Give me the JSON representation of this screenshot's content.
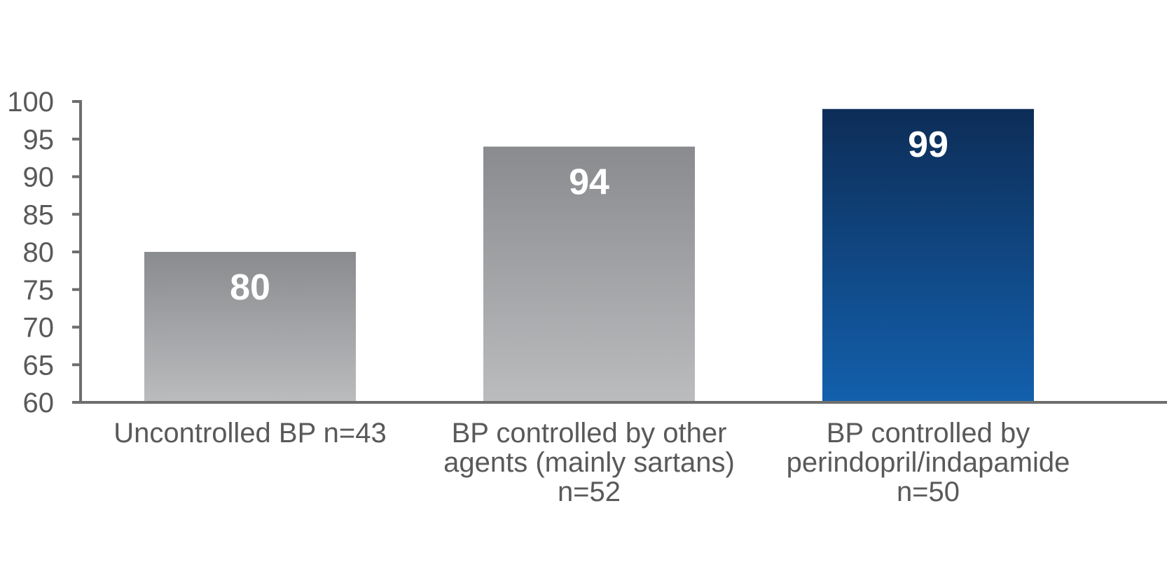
{
  "chart_data": {
    "type": "bar",
    "title": "",
    "xlabel": "",
    "ylabel": "",
    "ylim": [
      60,
      100
    ],
    "yticks": [
      60,
      65,
      70,
      75,
      80,
      85,
      90,
      95,
      100
    ],
    "grid": false,
    "categories": [
      [
        "Uncontrolled BP n=43"
      ],
      [
        "BP controlled by other",
        "agents (mainly sartans)",
        "n=52"
      ],
      [
        "BP controlled by",
        "perindopril/indapamide",
        "n=50"
      ]
    ],
    "values": [
      80,
      94,
      99
    ],
    "data_labels": [
      "80",
      "94",
      "99"
    ],
    "bar_styles": [
      {
        "top": "#898b8e",
        "bottom": "#bbbcbe"
      },
      {
        "top": "#898b8e",
        "bottom": "#bbbcbe"
      },
      {
        "top": "#0d2d57",
        "bottom": "#1360ad"
      }
    ]
  }
}
